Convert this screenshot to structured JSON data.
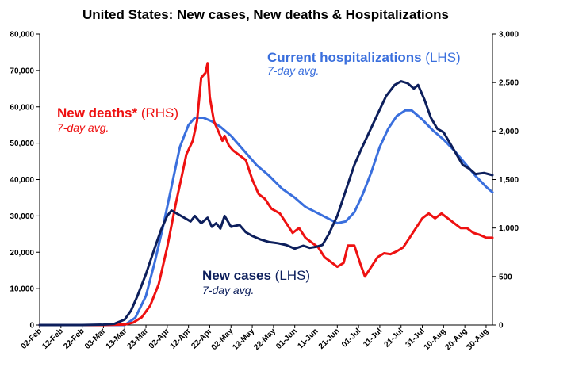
{
  "colors": {
    "cases": "#0d1f5c",
    "hospitalizations": "#3a6fdd",
    "deaths": "#ee1111",
    "axis": "#000000"
  },
  "chart_data": {
    "type": "line",
    "title": "United States: New cases, New deaths & Hospitalizations",
    "grid": false,
    "x_start": "02-Feb",
    "x_end": "02-Sep",
    "x_tick_labels": [
      "02-Feb",
      "12-Feb",
      "22-Feb",
      "03-Mar",
      "13-Mar",
      "23-Mar",
      "02-Apr",
      "12-Apr",
      "22-Apr",
      "02-May",
      "12-May",
      "22-May",
      "01-Jun",
      "11-Jun",
      "21-Jun",
      "01-Jul",
      "11-Jul",
      "21-Jul",
      "31-Jul",
      "10-Aug",
      "20-Aug",
      "30-Aug"
    ],
    "y_left": {
      "min": 0,
      "max": 80000,
      "ticks": [
        "0",
        "10,000",
        "20,000",
        "30,000",
        "40,000",
        "50,000",
        "60,000",
        "70,000",
        "80,000"
      ]
    },
    "y_right": {
      "min": 0,
      "max": 3000,
      "ticks": [
        "0",
        "500",
        "1,000",
        "1,500",
        "2,000",
        "2,500",
        "3,000"
      ]
    },
    "annotations": {
      "hospitalizations": {
        "main": "Current hospitalizations",
        "axis": " (LHS)",
        "sub": "7-day avg."
      },
      "deaths": {
        "main": "New deaths*",
        "axis": " (RHS)",
        "sub": "7-day avg."
      },
      "cases": {
        "main": "New cases",
        "axis": " (LHS)",
        "sub": "7-day avg."
      }
    },
    "series": [
      {
        "key": "cases",
        "axis": "left",
        "points": [
          [
            "02-Feb",
            0
          ],
          [
            "12-Feb",
            0
          ],
          [
            "22-Feb",
            0
          ],
          [
            "03-Mar",
            100
          ],
          [
            "08-Mar",
            300
          ],
          [
            "13-Mar",
            1500
          ],
          [
            "16-Mar",
            4000
          ],
          [
            "19-Mar",
            8000
          ],
          [
            "23-Mar",
            14000
          ],
          [
            "27-Mar",
            21000
          ],
          [
            "30-Mar",
            26000
          ],
          [
            "02-Apr",
            30000
          ],
          [
            "04-Apr",
            31500
          ],
          [
            "07-Apr",
            30500
          ],
          [
            "10-Apr",
            29500
          ],
          [
            "13-Apr",
            28500
          ],
          [
            "15-Apr",
            30000
          ],
          [
            "18-Apr",
            28000
          ],
          [
            "21-Apr",
            29500
          ],
          [
            "23-Apr",
            27000
          ],
          [
            "25-Apr",
            28000
          ],
          [
            "27-Apr",
            26500
          ],
          [
            "29-Apr",
            30000
          ],
          [
            "02-May",
            27000
          ],
          [
            "06-May",
            27500
          ],
          [
            "09-May",
            25500
          ],
          [
            "12-May",
            24500
          ],
          [
            "16-May",
            23500
          ],
          [
            "20-May",
            22800
          ],
          [
            "24-May",
            22500
          ],
          [
            "28-May",
            22000
          ],
          [
            "01-Jun",
            21000
          ],
          [
            "05-Jun",
            21800
          ],
          [
            "08-Jun",
            21200
          ],
          [
            "11-Jun",
            21500
          ],
          [
            "14-Jun",
            22000
          ],
          [
            "17-Jun",
            25000
          ],
          [
            "21-Jun",
            30000
          ],
          [
            "25-Jun",
            37000
          ],
          [
            "29-Jun",
            44000
          ],
          [
            "02-Jul",
            48000
          ],
          [
            "06-Jul",
            53000
          ],
          [
            "10-Jul",
            58000
          ],
          [
            "14-Jul",
            63000
          ],
          [
            "18-Jul",
            66000
          ],
          [
            "21-Jul",
            67000
          ],
          [
            "24-Jul",
            66500
          ],
          [
            "27-Jul",
            65000
          ],
          [
            "29-Jul",
            66000
          ],
          [
            "01-Aug",
            62000
          ],
          [
            "04-Aug",
            57000
          ],
          [
            "07-Aug",
            54000
          ],
          [
            "10-Aug",
            53000
          ],
          [
            "13-Aug",
            50000
          ],
          [
            "16-Aug",
            47000
          ],
          [
            "19-Aug",
            44000
          ],
          [
            "22-Aug",
            43000
          ],
          [
            "25-Aug",
            41500
          ],
          [
            "29-Aug",
            41800
          ],
          [
            "02-Sep",
            41200
          ]
        ]
      },
      {
        "key": "hospitalizations",
        "axis": "left",
        "points": [
          [
            "02-Feb",
            0
          ],
          [
            "03-Mar",
            0
          ],
          [
            "13-Mar",
            0
          ],
          [
            "18-Mar",
            2000
          ],
          [
            "23-Mar",
            8000
          ],
          [
            "27-Mar",
            17000
          ],
          [
            "31-Mar",
            27000
          ],
          [
            "04-Apr",
            38000
          ],
          [
            "08-Apr",
            49000
          ],
          [
            "12-Apr",
            55000
          ],
          [
            "15-Apr",
            57000
          ],
          [
            "19-Apr",
            57000
          ],
          [
            "23-Apr",
            56000
          ],
          [
            "27-Apr",
            54500
          ],
          [
            "02-May",
            52000
          ],
          [
            "08-May",
            48000
          ],
          [
            "14-May",
            44000
          ],
          [
            "20-May",
            41000
          ],
          [
            "26-May",
            37500
          ],
          [
            "01-Jun",
            35000
          ],
          [
            "06-Jun",
            32500
          ],
          [
            "11-Jun",
            31000
          ],
          [
            "16-Jun",
            29500
          ],
          [
            "21-Jun",
            28000
          ],
          [
            "25-Jun",
            28500
          ],
          [
            "29-Jun",
            31000
          ],
          [
            "03-Jul",
            36000
          ],
          [
            "07-Jul",
            42000
          ],
          [
            "11-Jul",
            49000
          ],
          [
            "15-Jul",
            54000
          ],
          [
            "19-Jul",
            57500
          ],
          [
            "23-Jul",
            59000
          ],
          [
            "26-Jul",
            59000
          ],
          [
            "31-Jul",
            56500
          ],
          [
            "05-Aug",
            53500
          ],
          [
            "10-Aug",
            51000
          ],
          [
            "15-Aug",
            48000
          ],
          [
            "20-Aug",
            44500
          ],
          [
            "25-Aug",
            41000
          ],
          [
            "30-Aug",
            38000
          ],
          [
            "02-Sep",
            36500
          ]
        ]
      },
      {
        "key": "deaths",
        "axis": "right",
        "points": [
          [
            "02-Feb",
            0
          ],
          [
            "12-Feb",
            0
          ],
          [
            "22-Feb",
            0
          ],
          [
            "03-Mar",
            0
          ],
          [
            "13-Mar",
            5
          ],
          [
            "17-Mar",
            25
          ],
          [
            "21-Mar",
            80
          ],
          [
            "25-Mar",
            200
          ],
          [
            "29-Mar",
            420
          ],
          [
            "02-Apr",
            800
          ],
          [
            "06-Apr",
            1250
          ],
          [
            "09-Apr",
            1550
          ],
          [
            "11-Apr",
            1760
          ],
          [
            "14-Apr",
            1900
          ],
          [
            "16-Apr",
            2100
          ],
          [
            "18-Apr",
            2550
          ],
          [
            "20-Apr",
            2600
          ],
          [
            "21-Apr",
            2700
          ],
          [
            "22-Apr",
            2350
          ],
          [
            "24-Apr",
            2100
          ],
          [
            "26-Apr",
            2000
          ],
          [
            "28-Apr",
            1900
          ],
          [
            "29-Apr",
            1950
          ],
          [
            "01-May",
            1850
          ],
          [
            "03-May",
            1800
          ],
          [
            "06-May",
            1750
          ],
          [
            "09-May",
            1700
          ],
          [
            "12-May",
            1500
          ],
          [
            "15-May",
            1350
          ],
          [
            "18-May",
            1300
          ],
          [
            "21-May",
            1200
          ],
          [
            "25-May",
            1150
          ],
          [
            "28-May",
            1050
          ],
          [
            "31-May",
            950
          ],
          [
            "03-Jun",
            1000
          ],
          [
            "06-Jun",
            900
          ],
          [
            "09-Jun",
            850
          ],
          [
            "12-Jun",
            800
          ],
          [
            "15-Jun",
            700
          ],
          [
            "18-Jun",
            650
          ],
          [
            "21-Jun",
            600
          ],
          [
            "24-Jun",
            640
          ],
          [
            "26-Jun",
            820
          ],
          [
            "29-Jun",
            820
          ],
          [
            "02-Jul",
            620
          ],
          [
            "04-Jul",
            500
          ],
          [
            "07-Jul",
            600
          ],
          [
            "10-Jul",
            700
          ],
          [
            "13-Jul",
            740
          ],
          [
            "16-Jul",
            730
          ],
          [
            "19-Jul",
            760
          ],
          [
            "22-Jul",
            800
          ],
          [
            "25-Jul",
            900
          ],
          [
            "28-Jul",
            1000
          ],
          [
            "31-Jul",
            1100
          ],
          [
            "03-Aug",
            1150
          ],
          [
            "06-Aug",
            1100
          ],
          [
            "09-Aug",
            1150
          ],
          [
            "12-Aug",
            1100
          ],
          [
            "15-Aug",
            1050
          ],
          [
            "18-Aug",
            1000
          ],
          [
            "21-Aug",
            1000
          ],
          [
            "24-Aug",
            950
          ],
          [
            "27-Aug",
            930
          ],
          [
            "30-Aug",
            900
          ],
          [
            "02-Sep",
            900
          ]
        ]
      }
    ]
  }
}
